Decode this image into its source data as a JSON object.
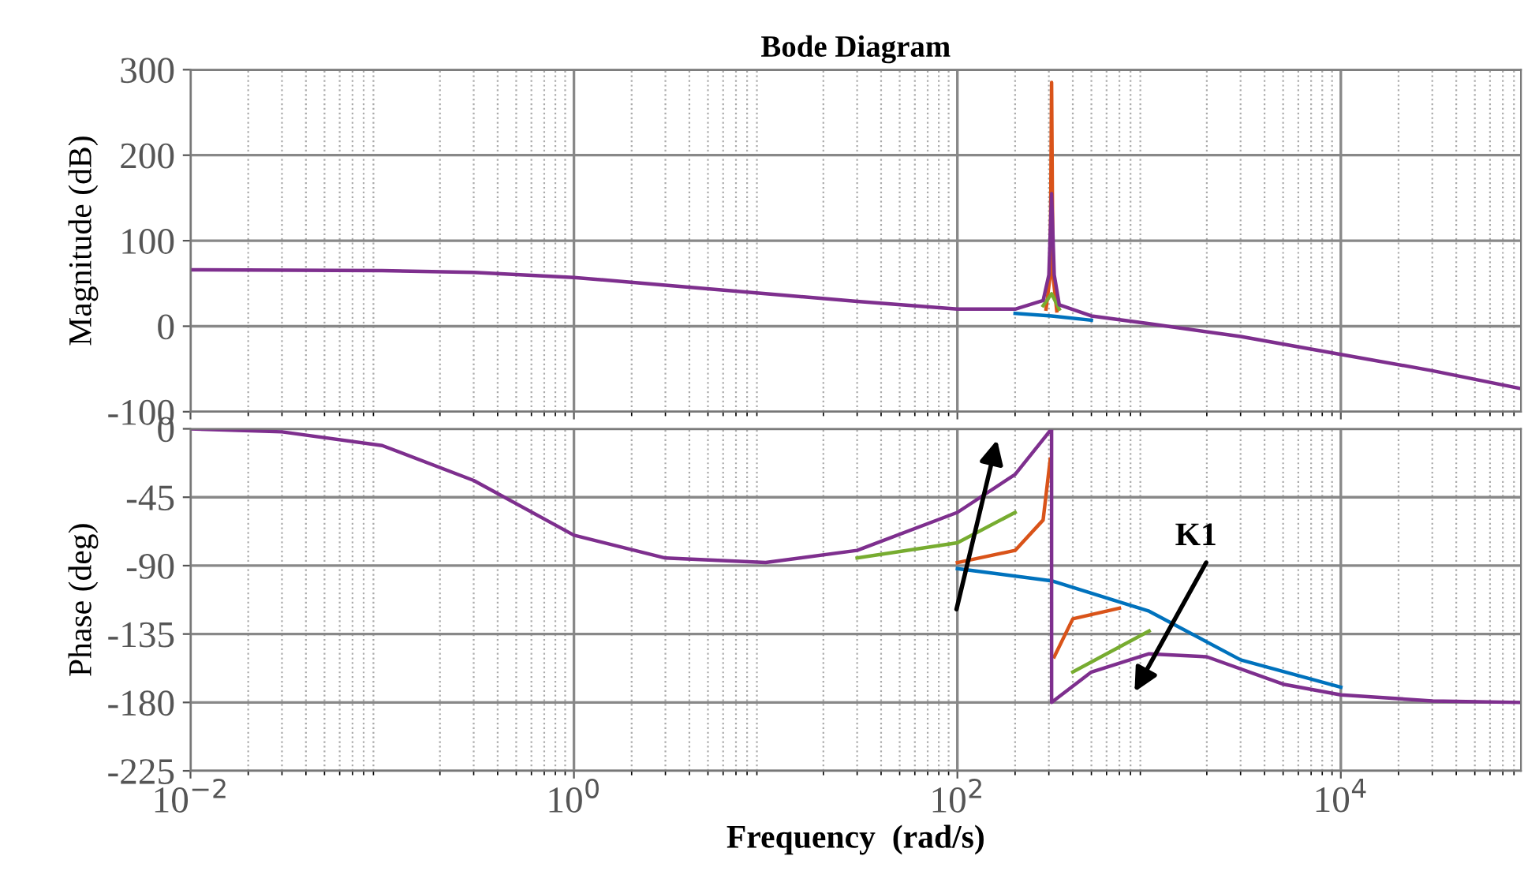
{
  "chart_data": [
    {
      "type": "line",
      "title": "Bode Diagram",
      "ylabel": "Magnitude (dB)",
      "log": "x",
      "grid": true,
      "tick_labels": "y",
      "xlim": [
        0.01,
        87000
      ],
      "xticks": [
        {
          "value": 0.01,
          "label": null
        },
        {
          "value": 1,
          "label": null
        },
        {
          "value": 100,
          "label": null
        },
        {
          "value": 10000,
          "label": null
        }
      ],
      "ylim": [
        -100,
        300
      ],
      "yticks": [
        -100,
        0,
        100,
        200,
        300
      ],
      "series": [
        {
          "color": "#0072bd",
          "x": [
            200,
            310,
            500
          ],
          "values": [
            15,
            12,
            7
          ]
        },
        {
          "color": "#d95319",
          "x": [
            290,
            305,
            310,
            315,
            330
          ],
          "values": [
            20,
            60,
            285,
            60,
            18
          ]
        },
        {
          "color": "#77ac30",
          "x": [
            280,
            310,
            340
          ],
          "values": [
            24,
            38,
            20
          ]
        },
        {
          "color": "#7e2f8e",
          "x": [
            0.01,
            0.1,
            0.3,
            1,
            3,
            10,
            30,
            100,
            200,
            280,
            300,
            310,
            320,
            340,
            500,
            1000,
            3000,
            10000,
            30000,
            87000
          ],
          "values": [
            66,
            65,
            63,
            57,
            48,
            38,
            29,
            20,
            20,
            30,
            60,
            155,
            60,
            25,
            12,
            3,
            -12,
            -33,
            -52,
            -73
          ]
        }
      ]
    },
    {
      "type": "line",
      "xlabel": "Frequency  (rad/s)",
      "ylabel": "Phase (deg)",
      "log": "x",
      "grid": true,
      "annotations": [
        "K1"
      ],
      "xlim": [
        0.01,
        87000
      ],
      "xticks": [
        {
          "value": 0.01,
          "label": "10$^{−2}$"
        },
        {
          "value": 1,
          "label": "10$^{0}$"
        },
        {
          "value": 100,
          "label": "10$^{2}$"
        },
        {
          "value": 10000,
          "label": "10$^{4}$"
        }
      ],
      "ylim": [
        -225,
        0
      ],
      "yticks": [
        -225,
        -180,
        -135,
        -90,
        -45,
        0
      ],
      "series": [
        {
          "color": "#0072bd",
          "x": [
            100,
            310,
            1000,
            3000,
            10000
          ],
          "values": [
            -92,
            -100,
            -120,
            -152,
            -170
          ]
        },
        {
          "color": "#d95319",
          "x": [
            100,
            200,
            280,
            305,
            310,
            320,
            400,
            700
          ],
          "values": [
            -88,
            -80,
            -60,
            -20,
            null,
            -150,
            -125,
            -118
          ]
        },
        {
          "color": "#77ac30",
          "x": [
            30,
            100,
            200,
            310,
            400,
            1000
          ],
          "values": [
            -85,
            -75,
            -55,
            null,
            -160,
            -133
          ]
        },
        {
          "color": "#7e2f8e",
          "x": [
            0.01,
            0.03,
            0.1,
            0.3,
            1,
            3,
            10,
            30,
            100,
            200,
            310,
            310.1,
            500,
            1000,
            2000,
            5000,
            10000,
            30000,
            87000
          ],
          "values": [
            0,
            -2,
            -11,
            -34,
            -70,
            -85,
            -88,
            -80,
            -55,
            -30,
            0,
            -180,
            -160,
            -148,
            -150,
            -168,
            -175,
            -179,
            -180
          ]
        }
      ]
    }
  ]
}
